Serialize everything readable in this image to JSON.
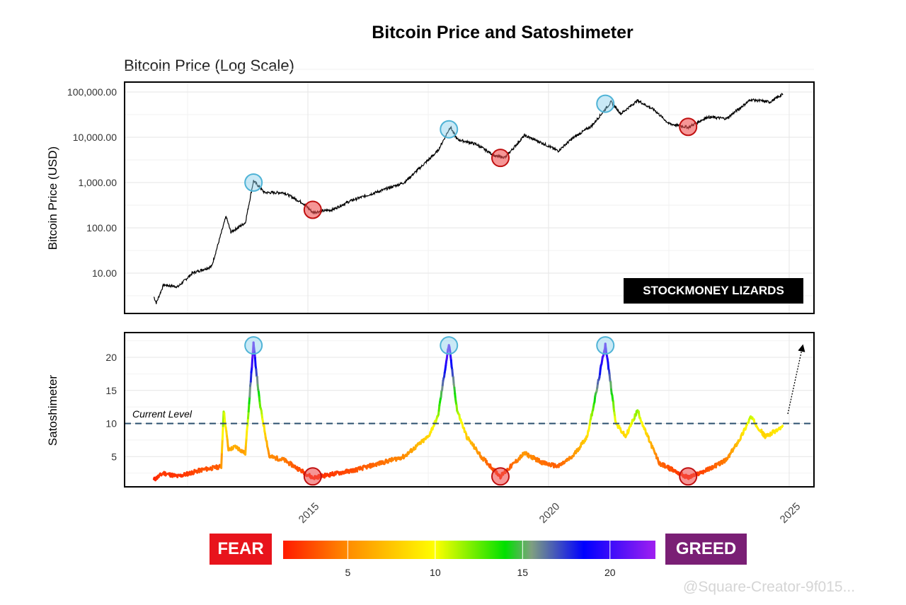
{
  "chart_data": [
    {
      "type": "line",
      "title": "Bitcoin Price and Satoshimeter",
      "subtitle": "Bitcoin Price (Log Scale)",
      "ylabel": "Bitcoin Price (USD)",
      "yscale": "log",
      "ylim": [
        1.3,
        165000
      ],
      "xlim": [
        2011.2,
        2025.5
      ],
      "yticks": [
        "10.00",
        "100.00",
        "1,000.00",
        "10,000.00",
        "100,000.00"
      ],
      "ytick_values": [
        10,
        100,
        1000,
        10000,
        100000
      ],
      "grid": true,
      "annotation": "STOCKMONEY LIZARDS",
      "series": [
        {
          "color": "#000000",
          "x": [
            2011.8,
            2011.85,
            2012.0,
            2012.3,
            2012.6,
            2013.0,
            2013.3,
            2013.4,
            2013.7,
            2013.87,
            2014.1,
            2014.5,
            2014.9,
            2015.1,
            2015.5,
            2015.9,
            2016.5,
            2017.0,
            2017.4,
            2017.7,
            2017.96,
            2018.1,
            2018.5,
            2018.9,
            2019.1,
            2019.5,
            2019.9,
            2020.2,
            2020.5,
            2020.9,
            2021.3,
            2021.5,
            2021.85,
            2022.2,
            2022.5,
            2022.9,
            2023.3,
            2023.7,
            2024.2,
            2024.6,
            2024.87
          ],
          "y": [
            3,
            2.2,
            5.5,
            5,
            10,
            14,
            180,
            80,
            130,
            1100,
            600,
            600,
            350,
            220,
            250,
            400,
            650,
            1000,
            2500,
            5000,
            17000,
            9000,
            7000,
            3800,
            3600,
            11000,
            7200,
            5000,
            9500,
            18000,
            60000,
            33000,
            65000,
            40000,
            20000,
            16500,
            28000,
            26000,
            68000,
            60000,
            90000
          ]
        }
      ],
      "peaks": [
        {
          "x": 2013.87,
          "y": 1000
        },
        {
          "x": 2017.93,
          "y": 15000
        },
        {
          "x": 2021.18,
          "y": 55000
        }
      ],
      "bottoms": [
        {
          "x": 2015.1,
          "y": 250
        },
        {
          "x": 2019.0,
          "y": 3500
        },
        {
          "x": 2022.9,
          "y": 17000
        }
      ]
    },
    {
      "type": "line",
      "ylabel": "Satoshimeter",
      "ylim": [
        0.4,
        23.8
      ],
      "xlim": [
        2011.2,
        2025.5
      ],
      "yticks": [
        "5",
        "10",
        "15",
        "20"
      ],
      "ytick_values": [
        5,
        10,
        15,
        20
      ],
      "xticks": [
        "2015",
        "2020",
        "2025"
      ],
      "xtick_values": [
        2015,
        2020,
        2025
      ],
      "grid": true,
      "reference_line": {
        "value": 10,
        "label": "Current Level",
        "color": "#2a4f6e",
        "style": "dashed"
      },
      "series": [
        {
          "x": [
            2011.8,
            2012.0,
            2012.3,
            2012.8,
            2013.2,
            2013.25,
            2013.35,
            2013.5,
            2013.7,
            2013.87,
            2014.0,
            2014.2,
            2014.5,
            2015.1,
            2016.0,
            2016.5,
            2017.0,
            2017.5,
            2017.7,
            2017.93,
            2018.1,
            2018.3,
            2018.6,
            2019.0,
            2019.5,
            2019.9,
            2020.2,
            2020.5,
            2020.8,
            2021.0,
            2021.18,
            2021.4,
            2021.6,
            2021.85,
            2022.0,
            2022.3,
            2022.9,
            2023.3,
            2023.7,
            2024.0,
            2024.2,
            2024.5,
            2024.87
          ],
          "y": [
            1.5,
            2.5,
            2.0,
            3.0,
            3.5,
            12,
            6,
            6.5,
            5.5,
            22,
            13,
            5,
            4.5,
            1.8,
            3,
            4,
            5,
            8,
            11,
            22,
            12,
            8,
            5,
            2,
            5.5,
            4,
            3.5,
            5,
            8,
            15,
            22,
            10,
            8,
            12,
            9,
            4,
            1.8,
            3,
            4.5,
            8,
            11,
            8,
            9.5
          ]
        }
      ],
      "peaks": [
        {
          "x": 2013.87,
          "y": 21.8
        },
        {
          "x": 2017.93,
          "y": 21.8
        },
        {
          "x": 2021.18,
          "y": 21.8
        }
      ],
      "bottoms": [
        {
          "x": 2015.1,
          "y": 2
        },
        {
          "x": 2019.0,
          "y": 2
        },
        {
          "x": 2022.9,
          "y": 2
        }
      ],
      "colorscale": {
        "ticks": [
          "5",
          "10",
          "15",
          "20"
        ],
        "tick_values": [
          5,
          10,
          15,
          20
        ],
        "range": [
          1.3,
          22.6
        ],
        "stops": [
          [
            1.3,
            "#ff1a00"
          ],
          [
            5,
            "#ff8c00"
          ],
          [
            10,
            "#ffff00"
          ],
          [
            14,
            "#00e000"
          ],
          [
            15.5,
            "#7fa080"
          ],
          [
            18.5,
            "#0000ff"
          ],
          [
            22.6,
            "#a020f0"
          ]
        ],
        "low_label": "FEAR",
        "high_label": "GREED",
        "low_color": "#e8141c",
        "high_color": "#7a1f75"
      }
    }
  ],
  "watermark": "@Square-Creator-9f015..."
}
